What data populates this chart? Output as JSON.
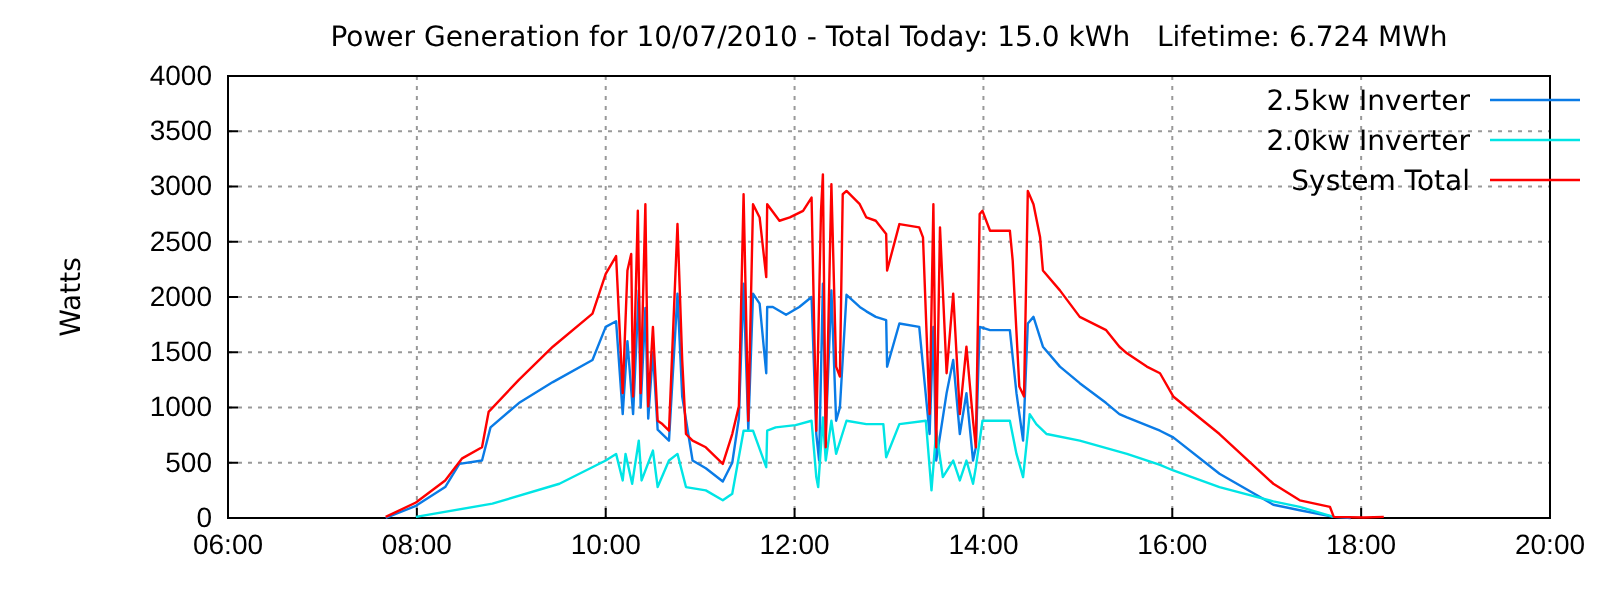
{
  "chart_data": {
    "type": "line",
    "title": "Power Generation for 10/07/2010 - Total Today: 15.0 kWh   Lifetime: 6.724 MWh",
    "ylabel": "Watts",
    "xlim": [
      6,
      20
    ],
    "xticks": [
      {
        "value": 6,
        "label": "06:00"
      },
      {
        "value": 8,
        "label": "08:00"
      },
      {
        "value": 10,
        "label": "10:00"
      },
      {
        "value": 12,
        "label": "12:00"
      },
      {
        "value": 14,
        "label": "14:00"
      },
      {
        "value": 16,
        "label": "16:00"
      },
      {
        "value": 18,
        "label": "18:00"
      },
      {
        "value": 20,
        "label": "20:00"
      }
    ],
    "ylim": [
      0,
      4000
    ],
    "yticks": [
      0,
      500,
      1000,
      1500,
      2000,
      2500,
      3000,
      3500,
      4000
    ],
    "grid": true,
    "legend": "top right",
    "series": [
      {
        "name": "2.5kw Inverter",
        "color": "#0a7be6",
        "x": [
          7.67,
          7.99,
          8.3,
          8.45,
          8.69,
          8.78,
          9.08,
          9.44,
          9.86,
          10.0,
          10.11,
          10.18,
          10.23,
          10.29,
          10.35,
          10.37,
          10.42,
          10.45,
          10.5,
          10.55,
          10.67,
          10.76,
          10.81,
          10.92,
          11.06,
          11.24,
          11.34,
          11.41,
          11.46,
          11.51,
          11.56,
          11.63,
          11.7,
          11.71,
          11.77,
          11.91,
          12.05,
          12.18,
          12.23,
          12.26,
          12.3,
          12.33,
          12.39,
          12.44,
          12.48,
          12.55,
          12.69,
          12.76,
          12.86,
          12.97,
          12.98,
          13.11,
          13.32,
          13.43,
          13.47,
          13.5,
          13.61,
          13.68,
          13.75,
          13.82,
          13.89,
          13.92,
          13.96,
          14.07,
          14.28,
          14.35,
          14.42,
          14.47,
          14.53,
          14.63,
          14.81,
          15.02,
          15.3,
          15.44,
          15.52,
          15.87,
          16.01,
          16.5,
          17.07,
          17.35,
          17.71,
          17.89
        ],
        "values": [
          0,
          110,
          280,
          490,
          520,
          820,
          1040,
          1230,
          1430,
          1730,
          1780,
          940,
          1600,
          940,
          2060,
          1000,
          1900,
          900,
          1500,
          800,
          700,
          2030,
          1100,
          520,
          450,
          330,
          500,
          900,
          2120,
          800,
          2030,
          1940,
          1310,
          1910,
          1910,
          1840,
          1910,
          2000,
          760,
          520,
          2120,
          760,
          2060,
          880,
          1000,
          2020,
          1910,
          1870,
          1820,
          1790,
          1370,
          1760,
          1730,
          760,
          1730,
          520,
          1130,
          1430,
          760,
          1130,
          520,
          640,
          1730,
          1700,
          1700,
          1130,
          700,
          1760,
          1820,
          1550,
          1370,
          1220,
          1040,
          940,
          910,
          790,
          730,
          400,
          120,
          70,
          10,
          0
        ]
      },
      {
        "name": "2.0kw Inverter",
        "color": "#00e5e5",
        "x": [
          7.99,
          8.8,
          9.51,
          10.0,
          10.11,
          10.18,
          10.21,
          10.28,
          10.35,
          10.38,
          10.5,
          10.55,
          10.67,
          10.76,
          10.85,
          11.06,
          11.24,
          11.34,
          11.46,
          11.56,
          11.7,
          11.71,
          11.8,
          12.01,
          12.05,
          12.18,
          12.23,
          12.25,
          12.3,
          12.33,
          12.39,
          12.44,
          12.55,
          12.76,
          12.94,
          12.97,
          13.11,
          13.39,
          13.45,
          13.5,
          13.57,
          13.68,
          13.75,
          13.82,
          13.89,
          13.92,
          13.99,
          14.28,
          14.35,
          14.42,
          14.49,
          14.56,
          14.67,
          15.02,
          15.52,
          15.87,
          16.01,
          16.5,
          17.07,
          17.35,
          17.71
        ],
        "values": [
          10,
          130,
          310,
          520,
          580,
          340,
          580,
          310,
          700,
          340,
          610,
          280,
          520,
          580,
          280,
          250,
          160,
          220,
          790,
          790,
          460,
          790,
          820,
          840,
          850,
          880,
          370,
          280,
          910,
          520,
          880,
          580,
          880,
          850,
          850,
          550,
          850,
          880,
          250,
          790,
          370,
          520,
          340,
          520,
          310,
          460,
          880,
          880,
          580,
          370,
          940,
          850,
          760,
          700,
          580,
          480,
          430,
          280,
          150,
          100,
          10
        ]
      },
      {
        "name": "System Total",
        "color": "#ff0000",
        "x": [
          7.67,
          7.99,
          8.3,
          8.48,
          8.69,
          8.76,
          9.08,
          9.44,
          9.86,
          10.0,
          10.11,
          10.18,
          10.23,
          10.27,
          10.29,
          10.34,
          10.37,
          10.42,
          10.45,
          10.5,
          10.55,
          10.6,
          10.67,
          10.76,
          10.81,
          10.85,
          10.92,
          11.06,
          11.24,
          11.34,
          11.41,
          11.46,
          11.51,
          11.56,
          11.63,
          11.7,
          11.71,
          11.84,
          11.95,
          12.09,
          12.18,
          12.23,
          12.28,
          12.3,
          12.33,
          12.39,
          12.44,
          12.48,
          12.51,
          12.55,
          12.69,
          12.76,
          12.86,
          12.97,
          12.98,
          13.11,
          13.32,
          13.36,
          13.43,
          13.47,
          13.5,
          13.54,
          13.61,
          13.68,
          13.75,
          13.82,
          13.89,
          13.92,
          13.96,
          13.99,
          14.07,
          14.28,
          14.31,
          14.38,
          14.43,
          14.47,
          14.53,
          14.6,
          14.63,
          14.81,
          15.02,
          15.3,
          15.44,
          15.52,
          15.73,
          15.87,
          16.01,
          16.5,
          17.07,
          17.35,
          17.67,
          17.71,
          18.03,
          18.24
        ],
        "values": [
          10,
          140,
          340,
          540,
          640,
          960,
          1250,
          1550,
          1850,
          2210,
          2370,
          1130,
          2240,
          2390,
          1100,
          2780,
          1130,
          2840,
          1010,
          1730,
          880,
          850,
          790,
          2660,
          1430,
          760,
          700,
          640,
          490,
          760,
          1010,
          2930,
          880,
          2840,
          2720,
          2180,
          2840,
          2690,
          2720,
          2780,
          2900,
          790,
          2780,
          3110,
          640,
          3020,
          1370,
          1280,
          2930,
          2960,
          2840,
          2720,
          2690,
          2570,
          2240,
          2660,
          2630,
          2540,
          940,
          2840,
          640,
          2630,
          1310,
          2030,
          940,
          1550,
          880,
          640,
          2750,
          2780,
          2600,
          2600,
          2330,
          1190,
          1100,
          2960,
          2840,
          2540,
          2240,
          2060,
          1820,
          1700,
          1550,
          1490,
          1370,
          1310,
          1100,
          760,
          310,
          160,
          100,
          10,
          5,
          10
        ]
      }
    ]
  }
}
